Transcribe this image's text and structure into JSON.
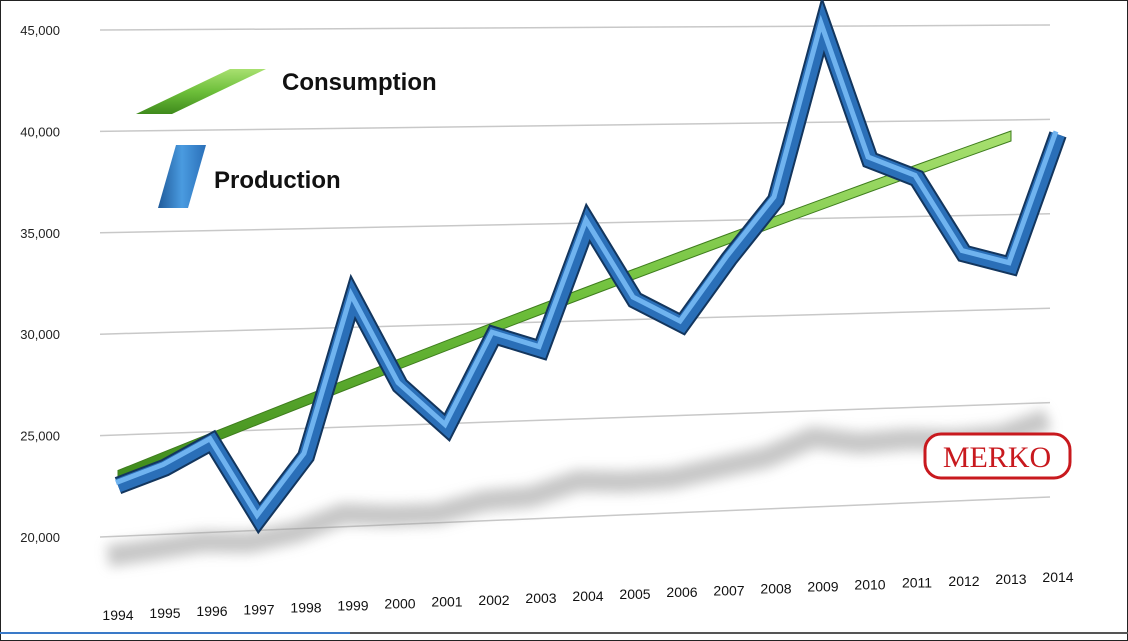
{
  "chart_data": {
    "type": "line",
    "categories": [
      "1994",
      "1995",
      "1996",
      "1997",
      "1998",
      "1999",
      "2000",
      "2001",
      "2002",
      "2003",
      "2004",
      "2005",
      "2006",
      "2007",
      "2008",
      "2009",
      "2010",
      "2011",
      "2012",
      "2013",
      "2014"
    ],
    "series": [
      {
        "name": "Consumption",
        "values": [
          23000,
          23850,
          24700,
          25550,
          26400,
          27250,
          28100,
          28950,
          29800,
          30650,
          31500,
          32350,
          33200,
          34050,
          34900,
          35750,
          36600,
          37450,
          38300,
          39150,
          null
        ]
      },
      {
        "name": "Production",
        "values": [
          22500,
          23300,
          24500,
          20600,
          23600,
          31500,
          27000,
          24800,
          29400,
          28600,
          35000,
          31000,
          29700,
          33000,
          36000,
          45000,
          38000,
          37000,
          33000,
          32300,
          39200
        ]
      }
    ],
    "yticks": [
      "20,000",
      "25,000",
      "30,000",
      "35,000",
      "40,000",
      "45,000"
    ],
    "ytick_values": [
      20000,
      25000,
      30000,
      35000,
      40000,
      45000
    ],
    "ylim": [
      20000,
      45000
    ],
    "grid": true,
    "legend_placement": "top-left",
    "colors": {
      "Consumption": "#6dbf3a",
      "Production": "#3f8fd8"
    },
    "logo": "MERKO"
  }
}
